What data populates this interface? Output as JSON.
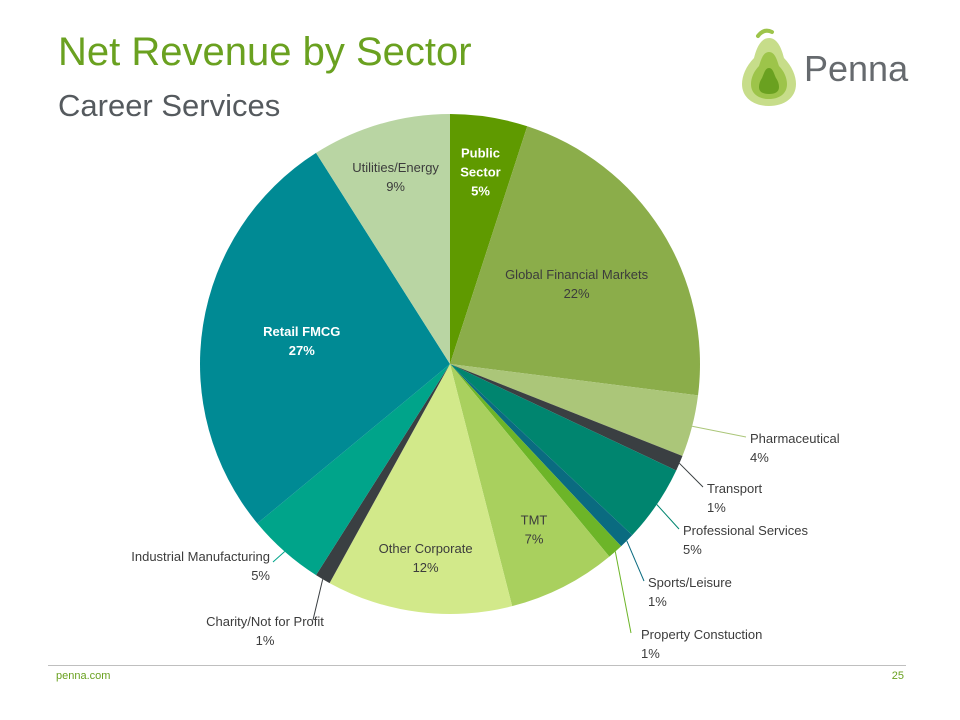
{
  "header": {
    "title": "Net Revenue by Sector",
    "subtitle": "Career Services"
  },
  "logo": {
    "text": "Penna",
    "icon": "pear-icon",
    "color_light": "#c7dd8a",
    "color_mid": "#9dc44a",
    "color_dark": "#6aa120"
  },
  "footer": {
    "website": "penna.com",
    "page_number": "25"
  },
  "chart_data": {
    "type": "pie",
    "title": "Net Revenue by Sector",
    "subtitle": "Career Services",
    "unit": "%",
    "start": "12 o'clock, clockwise",
    "slices": [
      {
        "name": "Public Sector",
        "value": 5,
        "label": "5%",
        "color": "#5f9a00",
        "label_lines": [
          "Public",
          "Sector",
          "5%"
        ],
        "label_color": "#ffffff",
        "bold": true
      },
      {
        "name": "Global Financial Markets",
        "value": 22,
        "label": "22%",
        "color": "#8bad4a",
        "label_lines": [
          "Global Financial Markets",
          "22%"
        ],
        "label_color": "#3c3c3c",
        "bold": false
      },
      {
        "name": "Pharmaceutical",
        "value": 4,
        "label": "4%",
        "color": "#abc679",
        "label_lines": [
          "Pharmaceutical",
          "4%"
        ],
        "label_color": "#3c3c3c",
        "bold": false
      },
      {
        "name": "Transport",
        "value": 1,
        "label": "1%",
        "color": "#3a3f42",
        "label_lines": [
          "Transport",
          "1%"
        ],
        "label_color": "#3c3c3c",
        "bold": false
      },
      {
        "name": "Professional Services",
        "value": 5,
        "label": "5%",
        "color": "#00856f",
        "label_lines": [
          "Professional Services",
          "5%"
        ],
        "label_color": "#3c3c3c",
        "bold": false
      },
      {
        "name": "Sports/Leisure",
        "value": 1,
        "label": "1%",
        "color": "#0a6b80",
        "label_lines": [
          "Sports/Leisure",
          "1%"
        ],
        "label_color": "#3c3c3c",
        "bold": false
      },
      {
        "name": "Property Constuction",
        "value": 1,
        "label": "1%",
        "color": "#6db528",
        "label_lines": [
          "Property Constuction",
          "1%"
        ],
        "label_color": "#3c3c3c",
        "bold": false
      },
      {
        "name": "TMT",
        "value": 7,
        "label": "7%",
        "color": "#a9d05e",
        "label_lines": [
          "TMT",
          "7%"
        ],
        "label_color": "#3c3c3c",
        "bold": false
      },
      {
        "name": "Other Corporate",
        "value": 12,
        "label": "12%",
        "color": "#d2e98a",
        "label_lines": [
          "Other Corporate",
          "12%"
        ],
        "label_color": "#3c3c3c",
        "bold": false
      },
      {
        "name": "Charity/Not for Profit",
        "value": 1,
        "label": "1%",
        "color": "#3a3f42",
        "label_lines": [
          "Charity/Not for Profit",
          "1%"
        ],
        "label_color": "#3c3c3c",
        "bold": false
      },
      {
        "name": "Industrial Manufacturing",
        "value": 5,
        "label": "5%",
        "color": "#00a48a",
        "label_lines": [
          "Industrial Manufacturing",
          "5%"
        ],
        "label_color": "#3c3c3c",
        "bold": false
      },
      {
        "name": "Retail FMCG",
        "value": 27,
        "label": "27%",
        "color": "#008a94",
        "label_lines": [
          "Retail FMCG",
          "27%"
        ],
        "label_color": "#ffffff",
        "bold": true
      },
      {
        "name": "Utilities/Energy",
        "value": 9,
        "label": "9%",
        "color": "#b9d5a3",
        "label_lines": [
          "Utilities/Energy",
          "9%"
        ],
        "label_color": "#3c3c3c",
        "bold": false
      }
    ]
  }
}
